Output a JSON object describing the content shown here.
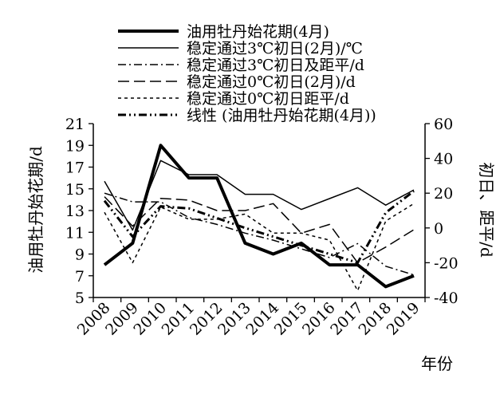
{
  "chart_data": {
    "type": "line",
    "categories": [
      "2008",
      "2009",
      "2010",
      "2011",
      "2012",
      "2013",
      "2014",
      "2015",
      "2016",
      "2017",
      "2018",
      "2019"
    ],
    "xlabel": "年份",
    "ylabel_left": "油用牡丹始花期/d",
    "ylabel_right": "初日、距平/d",
    "ylim_left": [
      5,
      21
    ],
    "yticks_left": [
      "5",
      "7",
      "9",
      "11",
      "13",
      "15",
      "17",
      "19",
      "21"
    ],
    "ylim_right": [
      -40,
      60
    ],
    "yticks_right": [
      "-40",
      "-20",
      "0",
      "20",
      "40",
      "60"
    ],
    "series": [
      {
        "name": "油用牡丹始花期(4月)",
        "axis": "left",
        "values": [
          8,
          10,
          19,
          16,
          16,
          10,
          9,
          10,
          8,
          8,
          6,
          7
        ]
      },
      {
        "name": "稳定通过3℃初日(2月)/℃",
        "axis": "left",
        "values": [
          15.7,
          11.2,
          17.6,
          16.3,
          16.3,
          14.5,
          14.5,
          13.1,
          14.1,
          15.1,
          13.5,
          14.9
        ]
      },
      {
        "name": "稳定通过3℃初日及距平/d",
        "axis": "right",
        "values": [
          20,
          15,
          15,
          6,
          2,
          -3,
          -7,
          -12,
          -17,
          -9,
          -22,
          -27
        ]
      },
      {
        "name": "稳定通过0℃初日(2月)/d",
        "axis": "right",
        "values": [
          18,
          1,
          17,
          16,
          10,
          10,
          14,
          -3,
          2,
          -20,
          -11,
          -1
        ]
      },
      {
        "name": "稳定通过0℃初日距平/d",
        "axis": "right",
        "values": [
          9,
          -20,
          12,
          5,
          5,
          8,
          -3,
          -3,
          -7,
          -36,
          4,
          14
        ]
      },
      {
        "name": "线性 (油用牡丹始花期(4月))",
        "axis": "left",
        "values": [
          13.9,
          10.6,
          13.4,
          13.2,
          12.3,
          11.4,
          10.6,
          9.8,
          9.0,
          8.2,
          12.8,
          14.8
        ]
      }
    ]
  }
}
